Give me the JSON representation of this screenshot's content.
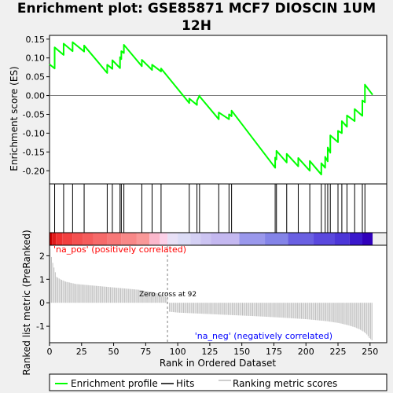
{
  "title": "Enrichment plot: GSE85871 MCF7 DIOSCIN 1UM 12H",
  "chart_data": {
    "type": "line",
    "panels": {
      "enrichment": {
        "ylabel": "Enrichment score (ES)",
        "ylim": [
          -0.235,
          0.16
        ],
        "yticks": [
          -0.2,
          -0.15,
          -0.1,
          -0.05,
          0.0,
          0.05,
          0.1,
          0.15
        ],
        "ytick_labels": [
          "-0.20",
          "-0.15",
          "-0.10",
          "-0.05",
          "0.00",
          "0.05",
          "0.10",
          "0.15"
        ],
        "grid": false
      },
      "ranked": {
        "ylabel": "Ranked list metric (PreRanked)",
        "xlabel": "Rank in Ordered Dataset",
        "ylim": [
          -1.7,
          2.45
        ],
        "yticks": [
          -1,
          0,
          1,
          2
        ],
        "ytick_labels": [
          "-1",
          "0",
          "1",
          "2"
        ],
        "zero_cross_label": "Zero cross at 92",
        "zero_cross_rank": 92,
        "pos_label": "'na_pos' (positively correlated)",
        "neg_label": "'na_neg' (negatively correlated)"
      }
    },
    "xlim": [
      0,
      263
    ],
    "xticks": [
      0,
      25,
      50,
      75,
      100,
      125,
      150,
      175,
      200,
      225,
      250
    ],
    "xtick_labels": [
      "0",
      "25",
      "50",
      "75",
      "100",
      "125",
      "150",
      "175",
      "200",
      "225",
      "250"
    ],
    "n_genes": 252,
    "hits": [
      4,
      11,
      18,
      27,
      45,
      49,
      55,
      56,
      58,
      72,
      80,
      87,
      109,
      115,
      117,
      132,
      140,
      142,
      176,
      177,
      185,
      194,
      203,
      212,
      215,
      217,
      219,
      225,
      228,
      232,
      238,
      244,
      246
    ],
    "es_profile": {
      "x": [
        0,
        4,
        4,
        11,
        11,
        18,
        18,
        27,
        27,
        45,
        45,
        49,
        49,
        55,
        55,
        56,
        56,
        58,
        58,
        72,
        72,
        80,
        80,
        87,
        87,
        109,
        109,
        115,
        115,
        117,
        117,
        132,
        132,
        140,
        140,
        142,
        142,
        176,
        176,
        177,
        177,
        185,
        185,
        194,
        194,
        203,
        203,
        212,
        212,
        215,
        215,
        217,
        217,
        219,
        219,
        225,
        225,
        228,
        228,
        232,
        232,
        238,
        238,
        244,
        244,
        246,
        246,
        252
      ],
      "y": [
        0.083,
        0.072,
        0.128,
        0.108,
        0.138,
        0.118,
        0.142,
        0.117,
        0.133,
        0.06,
        0.082,
        0.071,
        0.094,
        0.073,
        0.102,
        0.097,
        0.118,
        0.113,
        0.135,
        0.078,
        0.095,
        0.068,
        0.082,
        0.064,
        0.072,
        -0.02,
        -0.008,
        -0.025,
        -0.014,
        0.0,
        -0.002,
        -0.063,
        -0.045,
        -0.063,
        -0.05,
        -0.055,
        -0.04,
        -0.192,
        -0.165,
        -0.17,
        -0.147,
        -0.178,
        -0.155,
        -0.188,
        -0.166,
        -0.2,
        -0.174,
        -0.21,
        -0.18,
        -0.192,
        -0.163,
        -0.175,
        -0.138,
        -0.152,
        -0.106,
        -0.124,
        -0.094,
        -0.1,
        -0.068,
        -0.083,
        -0.053,
        -0.068,
        -0.036,
        -0.054,
        -0.013,
        -0.018,
        0.029,
        0.002
      ]
    },
    "ranked_metric": {
      "x": [
        0,
        1,
        2,
        3,
        4,
        5,
        8,
        12,
        20,
        30,
        40,
        50,
        60,
        70,
        80,
        88,
        91,
        92,
        93,
        100,
        120,
        140,
        160,
        180,
        200,
        215,
        225,
        232,
        238,
        242,
        245,
        247,
        249,
        251
      ],
      "values": [
        2.3,
        1.95,
        1.7,
        1.5,
        1.3,
        1.1,
        1.0,
        0.9,
        0.8,
        0.75,
        0.7,
        0.65,
        0.6,
        0.55,
        0.45,
        0.35,
        0.2,
        0.0,
        -0.38,
        -0.42,
        -0.47,
        -0.52,
        -0.57,
        -0.63,
        -0.7,
        -0.78,
        -0.86,
        -0.95,
        -1.05,
        -1.15,
        -1.25,
        -1.35,
        -1.5,
        -1.6
      ]
    },
    "legend": {
      "placement": "bottom",
      "entries": [
        "Enrichment profile",
        "Hits",
        "Ranking metric scores"
      ]
    },
    "colors": {
      "profile": "#00ff00",
      "hits": "#000000",
      "metric": "#bebebe",
      "zero_line": "#808080",
      "pos_label": "#ff0000",
      "neg_label": "#0000ff"
    },
    "heatmap_blocks": [
      {
        "from": 0,
        "to": 2,
        "color": "#cc0000"
      },
      {
        "from": 2,
        "to": 5,
        "color": "#e01a1a"
      },
      {
        "from": 5,
        "to": 10,
        "color": "#f03030"
      },
      {
        "from": 10,
        "to": 18,
        "color": "#f24040"
      },
      {
        "from": 18,
        "to": 26,
        "color": "#f45050"
      },
      {
        "from": 26,
        "to": 34,
        "color": "#f55c5c"
      },
      {
        "from": 34,
        "to": 45,
        "color": "#f66a6a"
      },
      {
        "from": 45,
        "to": 56,
        "color": "#f77878"
      },
      {
        "from": 56,
        "to": 68,
        "color": "#f88888"
      },
      {
        "from": 68,
        "to": 78,
        "color": "#f99898"
      },
      {
        "from": 78,
        "to": 86,
        "color": "#fbb8cc"
      },
      {
        "from": 86,
        "to": 92,
        "color": "#fcd0e8"
      },
      {
        "from": 92,
        "to": 100,
        "color": "#e8e0f6"
      },
      {
        "from": 100,
        "to": 110,
        "color": "#dcdcf6"
      },
      {
        "from": 110,
        "to": 118,
        "color": "#d4d0f4"
      },
      {
        "from": 118,
        "to": 126,
        "color": "#ccc4f2"
      },
      {
        "from": 126,
        "to": 148,
        "color": "#c4b8f0"
      },
      {
        "from": 148,
        "to": 168,
        "color": "#9a98ec"
      },
      {
        "from": 168,
        "to": 186,
        "color": "#8484e8"
      },
      {
        "from": 186,
        "to": 206,
        "color": "#6a60e2"
      },
      {
        "from": 206,
        "to": 222,
        "color": "#5a48de"
      },
      {
        "from": 222,
        "to": 234,
        "color": "#4c36d8"
      },
      {
        "from": 234,
        "to": 244,
        "color": "#3a18cc"
      },
      {
        "from": 244,
        "to": 252,
        "color": "#3000bb"
      }
    ]
  }
}
